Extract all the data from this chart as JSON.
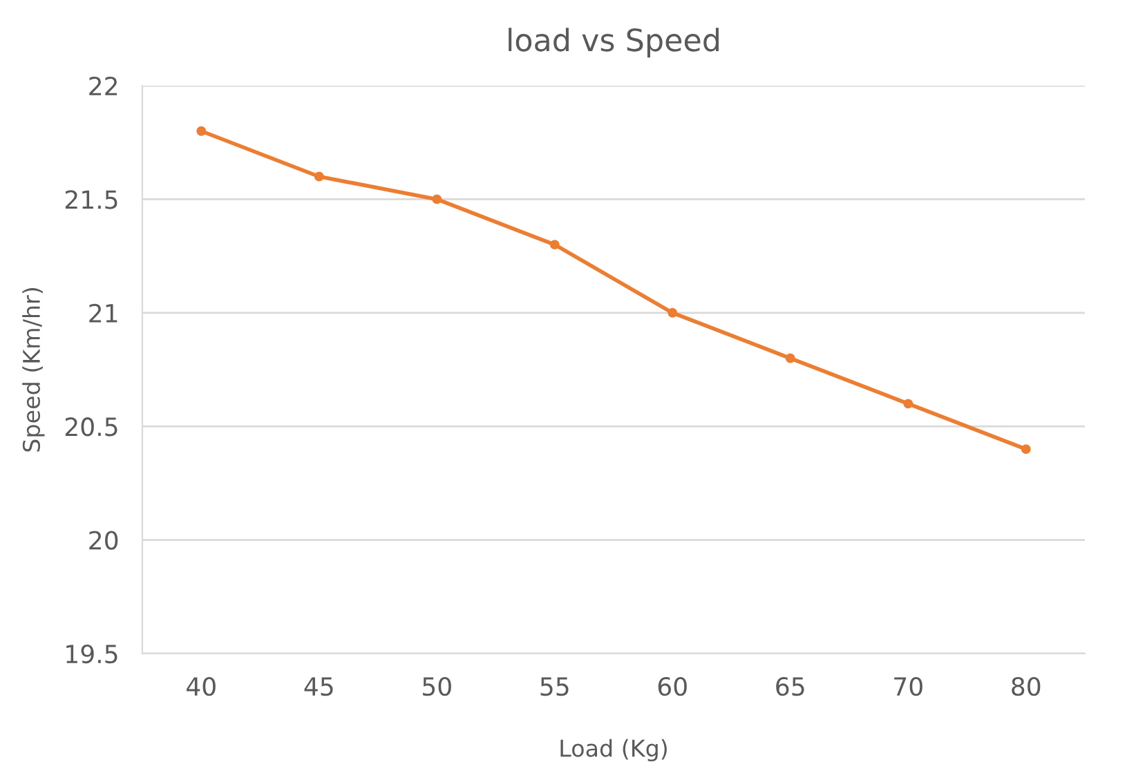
{
  "chart_data": {
    "type": "line",
    "title": "load vs Speed",
    "xlabel": "Load (Kg)",
    "ylabel": "Speed (Km/hr)",
    "categories": [
      "40",
      "45",
      "50",
      "55",
      "60",
      "65",
      "70",
      "80"
    ],
    "series": [
      {
        "color": "#ed7d31",
        "values": [
          21.8,
          21.6,
          21.5,
          21.3,
          21.0,
          20.8,
          20.6,
          20.4
        ]
      }
    ],
    "ylim": [
      19.5,
      22
    ],
    "yticks": [
      19.5,
      20,
      20.5,
      21,
      21.5,
      22
    ],
    "grid": "y",
    "marker": "circle",
    "line_style": "solid"
  }
}
